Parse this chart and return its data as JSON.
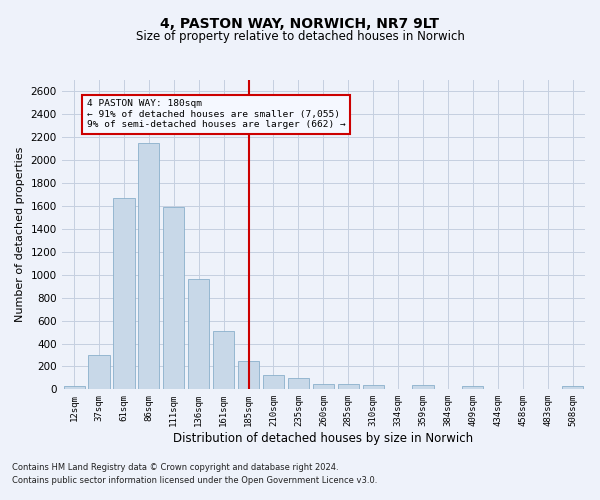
{
  "title1": "4, PASTON WAY, NORWICH, NR7 9LT",
  "title2": "Size of property relative to detached houses in Norwich",
  "xlabel": "Distribution of detached houses by size in Norwich",
  "ylabel": "Number of detached properties",
  "footnote1": "Contains HM Land Registry data © Crown copyright and database right 2024.",
  "footnote2": "Contains public sector information licensed under the Open Government Licence v3.0.",
  "bar_color": "#c8d8e8",
  "bar_edgecolor": "#8ab0cc",
  "vline_color": "#cc0000",
  "vline_x_index": 7,
  "annotation_line1": "4 PASTON WAY: 180sqm",
  "annotation_line2": "← 91% of detached houses are smaller (7,055)",
  "annotation_line3": "9% of semi-detached houses are larger (662) →",
  "annotation_box_edgecolor": "#cc0000",
  "annotation_box_facecolor": "#f5f8ff",
  "categories": [
    "12sqm",
    "37sqm",
    "61sqm",
    "86sqm",
    "111sqm",
    "136sqm",
    "161sqm",
    "185sqm",
    "210sqm",
    "235sqm",
    "260sqm",
    "285sqm",
    "310sqm",
    "334sqm",
    "359sqm",
    "384sqm",
    "409sqm",
    "434sqm",
    "458sqm",
    "483sqm",
    "508sqm"
  ],
  "values": [
    25,
    300,
    1670,
    2150,
    1595,
    960,
    505,
    250,
    125,
    100,
    50,
    50,
    35,
    0,
    35,
    0,
    30,
    0,
    0,
    0,
    25
  ],
  "ylim": [
    0,
    2700
  ],
  "yticks": [
    0,
    200,
    400,
    600,
    800,
    1000,
    1200,
    1400,
    1600,
    1800,
    2000,
    2200,
    2400,
    2600
  ],
  "background_color": "#eef2fa",
  "grid_color": "#c5cfe0",
  "title1_fontsize": 10,
  "title2_fontsize": 8.5,
  "ylabel_fontsize": 8,
  "xlabel_fontsize": 8.5,
  "ytick_fontsize": 7.5,
  "xtick_fontsize": 6.5,
  "footnote_fontsize": 6
}
